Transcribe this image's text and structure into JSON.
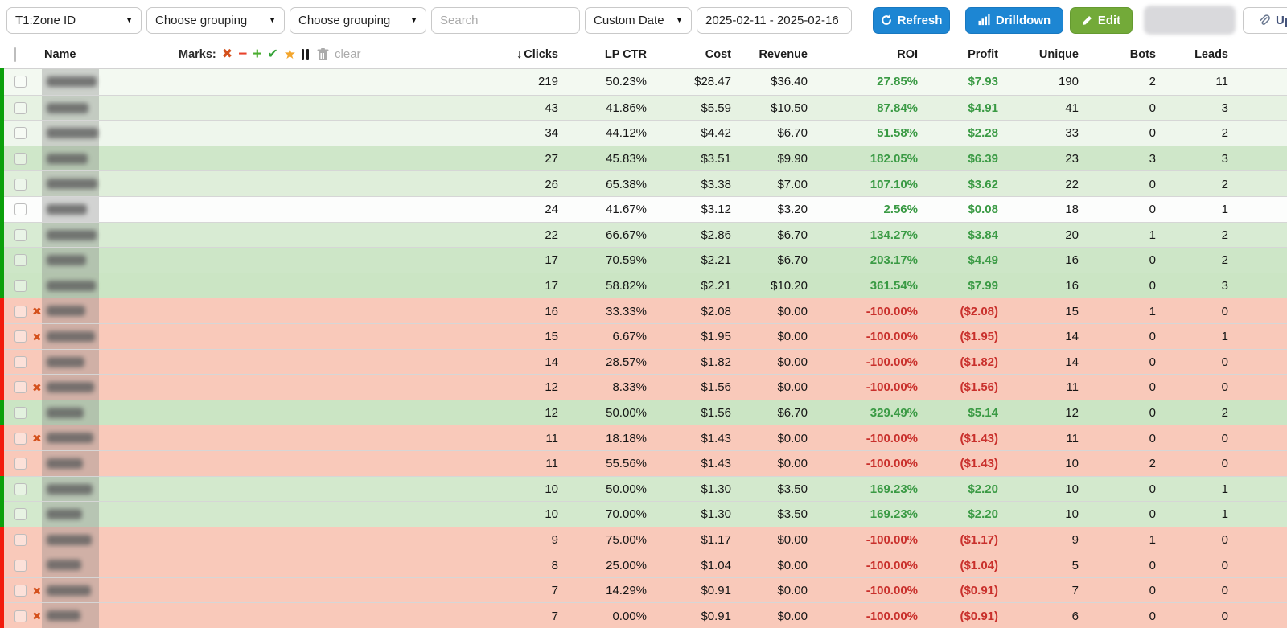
{
  "toolbar": {
    "zone_select": "T1:Zone ID",
    "grouping1": "Choose grouping",
    "grouping2": "Choose grouping",
    "search_placeholder": "Search",
    "date_preset": "Custom Date",
    "date_range": "2025-02-11 - 2025-02-16",
    "refresh_label": "Refresh",
    "drilldown_label": "Drilldown",
    "edit_label": "Edit",
    "update_label": "Up"
  },
  "table": {
    "marks_label": "Marks:",
    "clear_label": "clear",
    "columns": [
      "Name",
      "Clicks",
      "LP CTR",
      "Cost",
      "Revenue",
      "ROI",
      "Profit",
      "Unique",
      "Bots",
      "Leads"
    ],
    "rows": [
      {
        "marked": false,
        "status": "profit",
        "bg": "#f3f9f1",
        "clicks": "219",
        "lp_ctr": "50.23%",
        "cost": "$28.47",
        "revenue": "$36.40",
        "roi": "27.85%",
        "profit": "$7.93",
        "unique": "190",
        "bots": "2",
        "leads": "11"
      },
      {
        "marked": false,
        "status": "profit",
        "bg": "#e6f2e2",
        "clicks": "43",
        "lp_ctr": "41.86%",
        "cost": "$5.59",
        "revenue": "$10.50",
        "roi": "87.84%",
        "profit": "$4.91",
        "unique": "41",
        "bots": "0",
        "leads": "3"
      },
      {
        "marked": false,
        "status": "profit",
        "bg": "#eef6ec",
        "clicks": "34",
        "lp_ctr": "44.12%",
        "cost": "$4.42",
        "revenue": "$6.70",
        "roi": "51.58%",
        "profit": "$2.28",
        "unique": "33",
        "bots": "0",
        "leads": "2"
      },
      {
        "marked": false,
        "status": "profit",
        "bg": "#cfe7c9",
        "clicks": "27",
        "lp_ctr": "45.83%",
        "cost": "$3.51",
        "revenue": "$9.90",
        "roi": "182.05%",
        "profit": "$6.39",
        "unique": "23",
        "bots": "3",
        "leads": "3"
      },
      {
        "marked": false,
        "status": "profit",
        "bg": "#dfeeda",
        "clicks": "26",
        "lp_ctr": "65.38%",
        "cost": "$3.38",
        "revenue": "$7.00",
        "roi": "107.10%",
        "profit": "$3.62",
        "unique": "22",
        "bots": "0",
        "leads": "2"
      },
      {
        "marked": false,
        "status": "profit",
        "bg": "#fcfdfc",
        "clicks": "24",
        "lp_ctr": "41.67%",
        "cost": "$3.12",
        "revenue": "$3.20",
        "roi": "2.56%",
        "profit": "$0.08",
        "unique": "18",
        "bots": "0",
        "leads": "1"
      },
      {
        "marked": false,
        "status": "profit",
        "bg": "#d8ebd3",
        "clicks": "22",
        "lp_ctr": "66.67%",
        "cost": "$2.86",
        "revenue": "$6.70",
        "roi": "134.27%",
        "profit": "$3.84",
        "unique": "20",
        "bots": "1",
        "leads": "2"
      },
      {
        "marked": false,
        "status": "profit",
        "bg": "#cde6c7",
        "clicks": "17",
        "lp_ctr": "70.59%",
        "cost": "$2.21",
        "revenue": "$6.70",
        "roi": "203.17%",
        "profit": "$4.49",
        "unique": "16",
        "bots": "0",
        "leads": "2"
      },
      {
        "marked": false,
        "status": "profit",
        "bg": "#cbe5c4",
        "clicks": "17",
        "lp_ctr": "58.82%",
        "cost": "$2.21",
        "revenue": "$10.20",
        "roi": "361.54%",
        "profit": "$7.99",
        "unique": "16",
        "bots": "0",
        "leads": "3"
      },
      {
        "marked": true,
        "status": "loss",
        "bg": "#f9c9ba",
        "clicks": "16",
        "lp_ctr": "33.33%",
        "cost": "$2.08",
        "revenue": "$0.00",
        "roi": "-100.00%",
        "profit": "($2.08)",
        "unique": "15",
        "bots": "1",
        "leads": "0"
      },
      {
        "marked": true,
        "status": "loss",
        "bg": "#f9c9ba",
        "clicks": "15",
        "lp_ctr": "6.67%",
        "cost": "$1.95",
        "revenue": "$0.00",
        "roi": "-100.00%",
        "profit": "($1.95)",
        "unique": "14",
        "bots": "0",
        "leads": "1"
      },
      {
        "marked": false,
        "status": "loss",
        "bg": "#f9c9ba",
        "clicks": "14",
        "lp_ctr": "28.57%",
        "cost": "$1.82",
        "revenue": "$0.00",
        "roi": "-100.00%",
        "profit": "($1.82)",
        "unique": "14",
        "bots": "0",
        "leads": "0"
      },
      {
        "marked": true,
        "status": "loss",
        "bg": "#f9c9ba",
        "clicks": "12",
        "lp_ctr": "8.33%",
        "cost": "$1.56",
        "revenue": "$0.00",
        "roi": "-100.00%",
        "profit": "($1.56)",
        "unique": "11",
        "bots": "0",
        "leads": "0"
      },
      {
        "marked": false,
        "status": "profit",
        "bg": "#cbe5c4",
        "clicks": "12",
        "lp_ctr": "50.00%",
        "cost": "$1.56",
        "revenue": "$6.70",
        "roi": "329.49%",
        "profit": "$5.14",
        "unique": "12",
        "bots": "0",
        "leads": "2"
      },
      {
        "marked": true,
        "status": "loss",
        "bg": "#f9c9ba",
        "clicks": "11",
        "lp_ctr": "18.18%",
        "cost": "$1.43",
        "revenue": "$0.00",
        "roi": "-100.00%",
        "profit": "($1.43)",
        "unique": "11",
        "bots": "0",
        "leads": "0"
      },
      {
        "marked": false,
        "status": "loss",
        "bg": "#f9c9ba",
        "clicks": "11",
        "lp_ctr": "55.56%",
        "cost": "$1.43",
        "revenue": "$0.00",
        "roi": "-100.00%",
        "profit": "($1.43)",
        "unique": "10",
        "bots": "2",
        "leads": "0"
      },
      {
        "marked": false,
        "status": "profit",
        "bg": "#d3e9cd",
        "clicks": "10",
        "lp_ctr": "50.00%",
        "cost": "$1.30",
        "revenue": "$3.50",
        "roi": "169.23%",
        "profit": "$2.20",
        "unique": "10",
        "bots": "0",
        "leads": "1"
      },
      {
        "marked": false,
        "status": "profit",
        "bg": "#d3e9cd",
        "clicks": "10",
        "lp_ctr": "70.00%",
        "cost": "$1.30",
        "revenue": "$3.50",
        "roi": "169.23%",
        "profit": "$2.20",
        "unique": "10",
        "bots": "0",
        "leads": "1"
      },
      {
        "marked": false,
        "status": "loss",
        "bg": "#f9c9ba",
        "clicks": "9",
        "lp_ctr": "75.00%",
        "cost": "$1.17",
        "revenue": "$0.00",
        "roi": "-100.00%",
        "profit": "($1.17)",
        "unique": "9",
        "bots": "1",
        "leads": "0"
      },
      {
        "marked": false,
        "status": "loss",
        "bg": "#f9c9ba",
        "clicks": "8",
        "lp_ctr": "25.00%",
        "cost": "$1.04",
        "revenue": "$0.00",
        "roi": "-100.00%",
        "profit": "($1.04)",
        "unique": "5",
        "bots": "0",
        "leads": "0"
      },
      {
        "marked": true,
        "status": "loss",
        "bg": "#f9c9ba",
        "clicks": "7",
        "lp_ctr": "14.29%",
        "cost": "$0.91",
        "revenue": "$0.00",
        "roi": "-100.00%",
        "profit": "($0.91)",
        "unique": "7",
        "bots": "0",
        "leads": "0"
      },
      {
        "marked": true,
        "status": "loss",
        "bg": "#f9c9ba",
        "clicks": "7",
        "lp_ctr": "0.00%",
        "cost": "$0.91",
        "revenue": "$0.00",
        "roi": "-100.00%",
        "profit": "($0.91)",
        "unique": "6",
        "bots": "0",
        "leads": "0"
      }
    ]
  },
  "colors": {
    "accent_blue": "#1d86d3",
    "accent_green": "#73aa39",
    "roi_positive": "#3a9a44",
    "roi_negative": "#c9302c",
    "row_loss_bg": "#f9c9ba",
    "edge_profit": "#0ba00b",
    "edge_loss": "#f21b0b"
  }
}
